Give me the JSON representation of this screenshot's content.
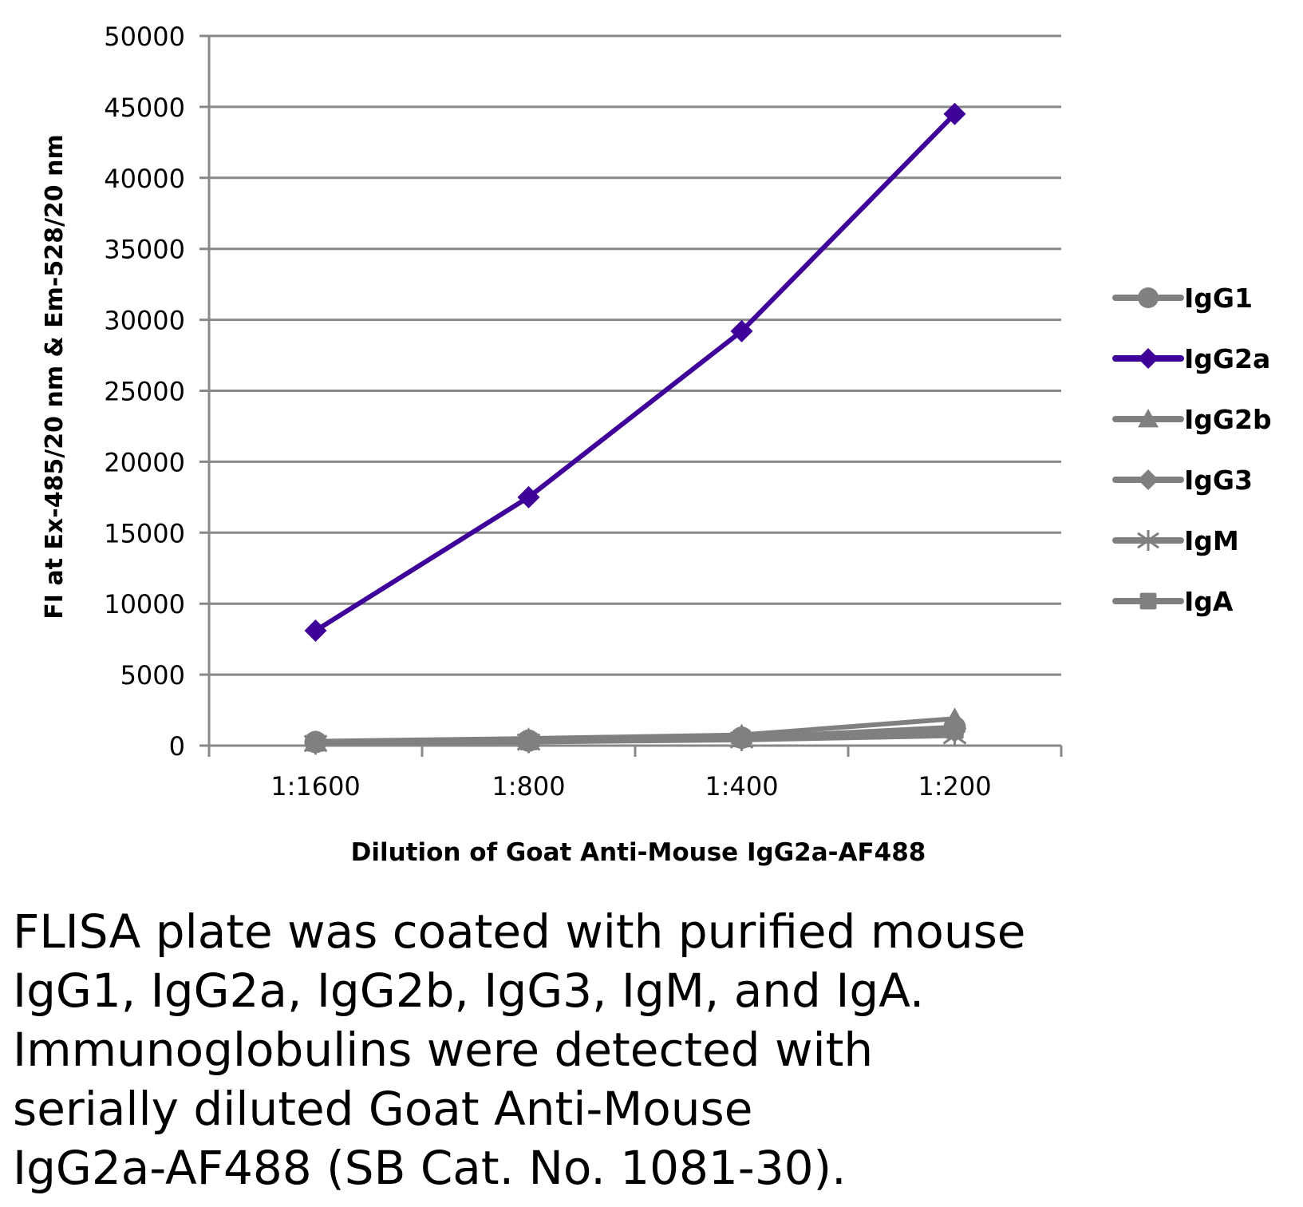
{
  "chart_data": {
    "type": "line",
    "title": "",
    "xlabel": "Dilution of Goat Anti-Mouse IgG2a-AF488",
    "ylabel": "FI at Ex-485/20 nm & Em-528/20 nm",
    "categories": [
      "1:1600",
      "1:800",
      "1:400",
      "1:200"
    ],
    "ylim": [
      0,
      50000
    ],
    "yticks": [
      0,
      5000,
      10000,
      15000,
      20000,
      25000,
      30000,
      35000,
      40000,
      45000,
      50000
    ],
    "grid": true,
    "legend_position": "right",
    "series": [
      {
        "name": "IgG1",
        "marker": "circle",
        "color": "#808080",
        "values": [
          250,
          350,
          550,
          1300
        ]
      },
      {
        "name": "IgG2a",
        "marker": "diamond",
        "color": "#3f0099",
        "values": [
          8100,
          17500,
          29200,
          44500
        ]
      },
      {
        "name": "IgG2b",
        "marker": "triangle",
        "color": "#808080",
        "values": [
          300,
          500,
          750,
          1900
        ]
      },
      {
        "name": "IgG3",
        "marker": "diamond",
        "color": "#808080",
        "values": [
          200,
          300,
          450,
          1000
        ]
      },
      {
        "name": "IgM",
        "marker": "star",
        "color": "#808080",
        "values": [
          150,
          250,
          400,
          700
        ]
      },
      {
        "name": "IgA",
        "marker": "square",
        "color": "#808080",
        "values": [
          200,
          300,
          500,
          1100
        ]
      }
    ]
  },
  "caption": "FLISA plate was coated with purified mouse IgG1, IgG2a, IgG2b, IgG3, IgM, and IgA. Immunoglobulins were detected with serially diluted Goat Anti-Mouse IgG2a-AF488 (SB Cat. No. 1081-30).",
  "caption_lines": [
    "FLISA plate was coated with purified mouse",
    "IgG1, IgG2a, IgG2b, IgG3, IgM, and IgA.",
    "Immunoglobulins were detected with",
    "serially diluted Goat Anti-Mouse",
    "IgG2a-AF488 (SB Cat. No. 1081-30)."
  ]
}
